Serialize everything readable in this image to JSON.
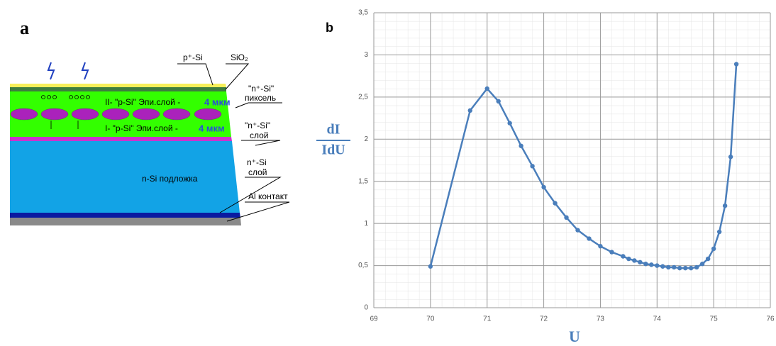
{
  "diagram": {
    "panel_label": "a",
    "p_si": "p⁺-Si",
    "sio2": "SiO₂",
    "n_si_pixel_1": "\"n⁺-Si\"",
    "n_si_pixel_2": "пиксель",
    "layer2_text": "II- \"p-Si\" Эпи.слой -",
    "layer2_thickness": "4 мкм",
    "layer1_text": "I- \"p-Si\" Эпи.слой -",
    "layer1_thickness": "4 мкм",
    "n_si_layer_1": "\"n⁺-Si\"",
    "n_si_layer_2": "слой",
    "substrate": "n-Si подложка",
    "n_si_bottom_1": "n⁺-Si",
    "n_si_bottom_2": "слой",
    "al_contact": "Al контакт"
  },
  "chart_data": {
    "type": "line",
    "panel_label": "b",
    "y_label_numerator": "dI",
    "y_label_denominator": "IdU",
    "x_label": "U",
    "x": [
      70,
      70.7,
      71,
      71.2,
      71.4,
      71.6,
      71.8,
      72,
      72.2,
      72.4,
      72.6,
      72.8,
      73,
      73.2,
      73.4,
      73.5,
      73.6,
      73.7,
      73.8,
      73.9,
      74,
      74.1,
      74.2,
      74.3,
      74.4,
      74.5,
      74.6,
      74.7,
      74.8,
      74.9,
      75,
      75.1,
      75.2,
      75.3,
      75.4
    ],
    "series": [
      {
        "color": "#4a7ebb",
        "values": [
          0.49,
          2.34,
          2.6,
          2.45,
          2.19,
          1.92,
          1.68,
          1.43,
          1.24,
          1.07,
          0.92,
          0.82,
          0.73,
          0.66,
          0.61,
          0.58,
          0.56,
          0.54,
          0.52,
          0.51,
          0.5,
          0.49,
          0.48,
          0.48,
          0.47,
          0.47,
          0.47,
          0.48,
          0.52,
          0.58,
          0.7,
          0.9,
          1.21,
          1.79,
          2.89
        ]
      }
    ],
    "xlim": [
      69,
      76
    ],
    "xticks": [
      69,
      70,
      71,
      72,
      73,
      74,
      75,
      76
    ],
    "ylim": [
      0,
      3.5
    ],
    "yticks": [
      0,
      {
        "value": 0.5,
        "label": "0,5"
      },
      1,
      {
        "value": 1.5,
        "label": "1,5"
      },
      2,
      {
        "value": 2.5,
        "label": "2,5"
      },
      3,
      {
        "value": 3.5,
        "label": "3,5"
      }
    ],
    "grid": true
  }
}
